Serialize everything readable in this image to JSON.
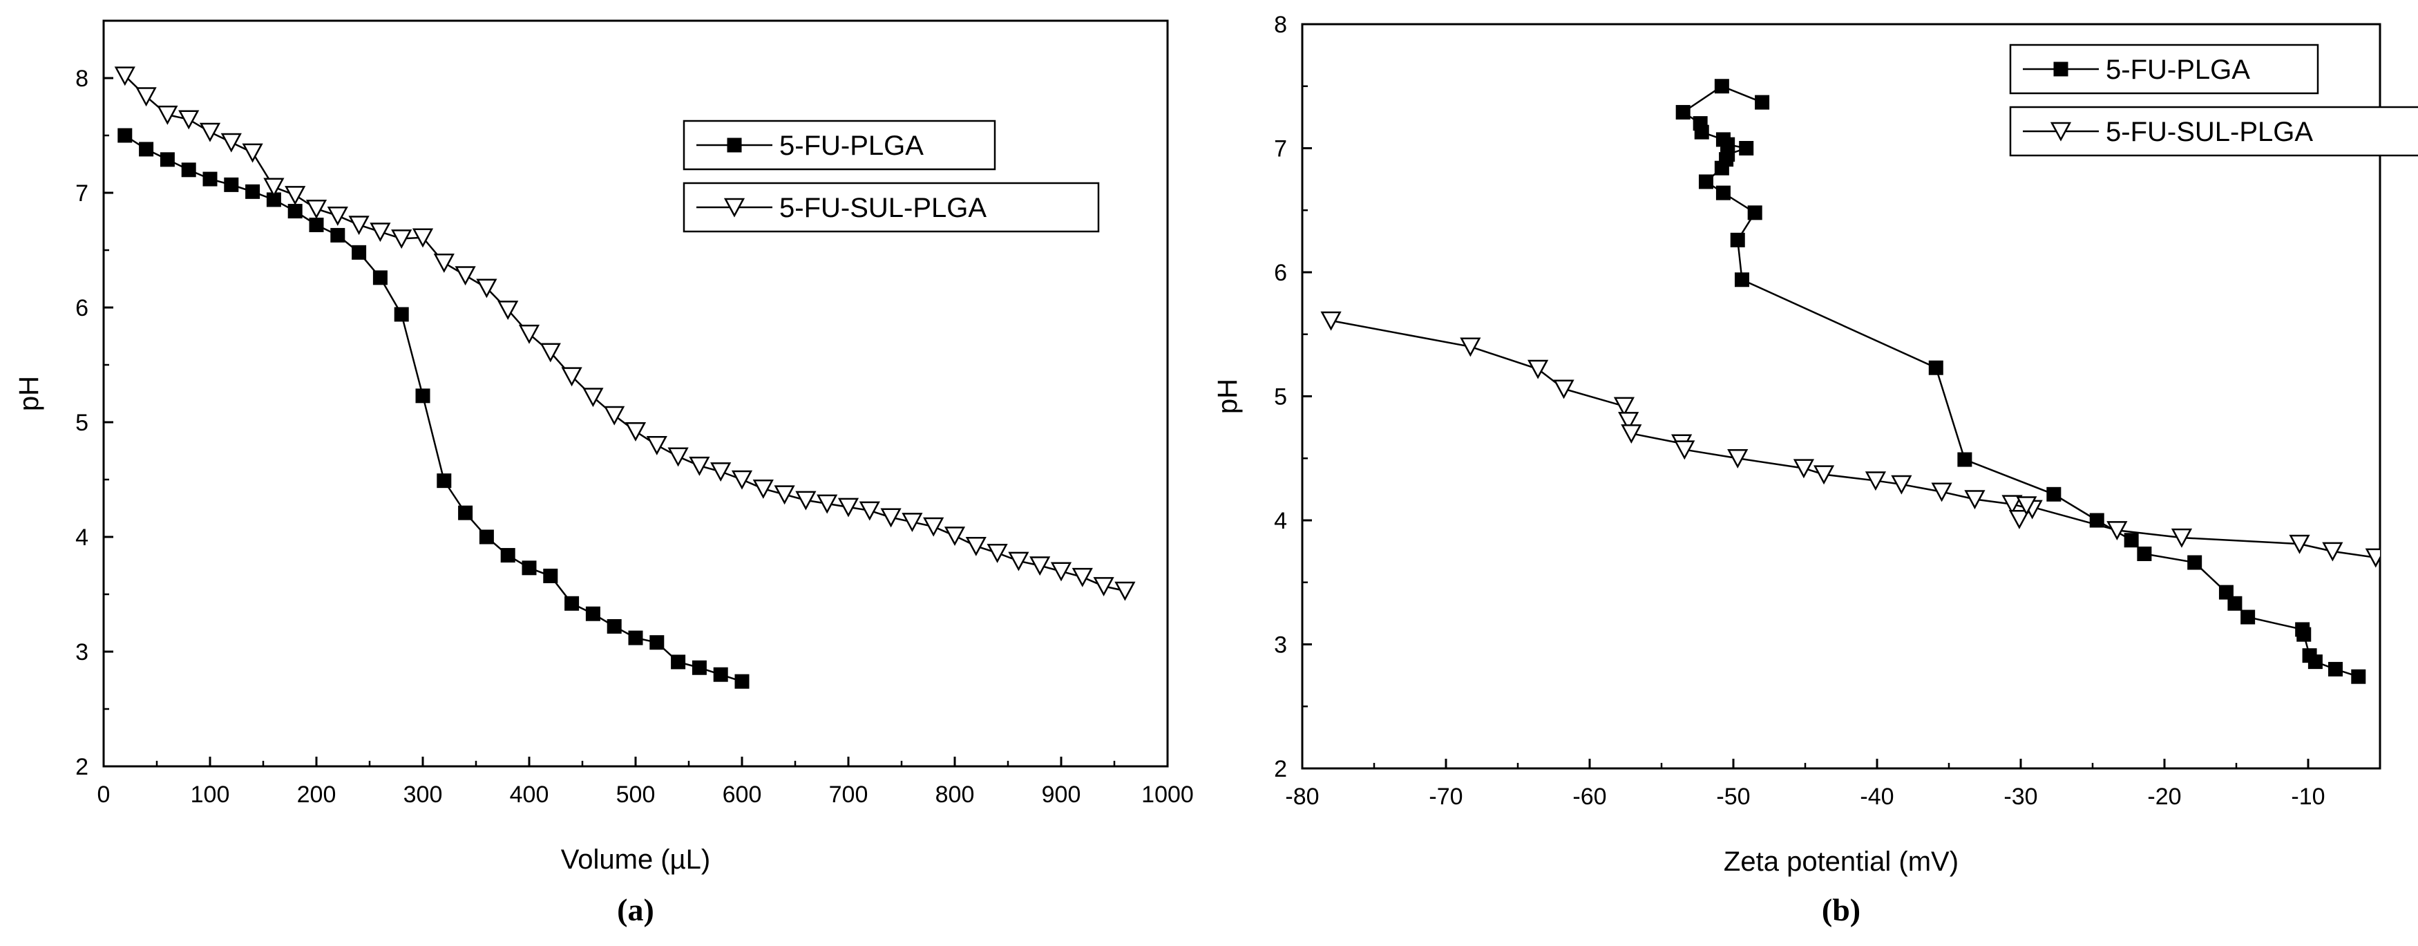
{
  "chart_data": [
    {
      "type": "line",
      "panel_label": "(a)",
      "xlabel": "Volume (µL)",
      "ylabel": "pH",
      "xlim": [
        0,
        1000
      ],
      "ylim": [
        2,
        8.5
      ],
      "xticks": [
        0,
        100,
        200,
        300,
        400,
        500,
        600,
        700,
        800,
        900,
        1000
      ],
      "yticks": [
        2,
        3,
        4,
        5,
        6,
        7,
        8
      ],
      "legend_position": "top-right",
      "series": [
        {
          "name": "5-FU-PLGA",
          "marker": "filled-square",
          "x": [
            20,
            40,
            60,
            80,
            100,
            120,
            140,
            160,
            180,
            200,
            220,
            240,
            260,
            280,
            300,
            320,
            340,
            360,
            380,
            400,
            420,
            440,
            460,
            480,
            500,
            520,
            540,
            560,
            580,
            600
          ],
          "y": [
            7.5,
            7.38,
            7.29,
            7.2,
            7.12,
            7.07,
            7.01,
            6.94,
            6.84,
            6.72,
            6.63,
            6.48,
            6.26,
            5.94,
            5.23,
            4.49,
            4.21,
            4.0,
            3.84,
            3.73,
            3.66,
            3.42,
            3.33,
            3.22,
            3.12,
            3.08,
            2.91,
            2.86,
            2.8,
            2.74
          ]
        },
        {
          "name": "5-FU-SUL-PLGA",
          "marker": "open-down-triangle",
          "x": [
            20,
            40,
            60,
            80,
            100,
            120,
            140,
            160,
            180,
            200,
            220,
            240,
            260,
            280,
            300,
            320,
            340,
            360,
            380,
            400,
            420,
            440,
            460,
            480,
            500,
            520,
            540,
            560,
            580,
            600,
            620,
            640,
            660,
            680,
            700,
            720,
            740,
            760,
            780,
            800,
            820,
            840,
            860,
            880,
            900,
            920,
            940,
            960
          ],
          "y": [
            8.02,
            7.84,
            7.68,
            7.64,
            7.53,
            7.44,
            7.35,
            7.05,
            6.98,
            6.86,
            6.8,
            6.72,
            6.66,
            6.6,
            6.61,
            6.39,
            6.28,
            6.17,
            5.98,
            5.77,
            5.61,
            5.4,
            5.22,
            5.06,
            4.92,
            4.8,
            4.7,
            4.62,
            4.57,
            4.5,
            4.42,
            4.37,
            4.32,
            4.29,
            4.26,
            4.23,
            4.17,
            4.13,
            4.09,
            4.01,
            3.92,
            3.86,
            3.79,
            3.75,
            3.7,
            3.65,
            3.57,
            3.53
          ]
        }
      ]
    },
    {
      "type": "line",
      "panel_label": "(b)",
      "xlabel": "Zeta potential (mV)",
      "ylabel": "pH",
      "xlim": [
        -80,
        -5
      ],
      "ylim": [
        2,
        8
      ],
      "xticks": [
        -80,
        -70,
        -60,
        -50,
        -40,
        -30,
        -20,
        -10
      ],
      "yticks": [
        2,
        3,
        4,
        5,
        6,
        7,
        8
      ],
      "legend_position": "top-right",
      "series": [
        {
          "name": "5-FU-PLGA",
          "marker": "filled-square",
          "x": [
            -48.0,
            -50.8,
            -53.5,
            -52.3,
            -52.2,
            -50.7,
            -50.4,
            -49.1,
            -50.4,
            -50.5,
            -50.8,
            -51.9,
            -50.7,
            -48.5,
            -49.7,
            -49.4,
            -35.9,
            -33.9,
            -27.7,
            -24.7,
            -22.3,
            -21.4,
            -17.9,
            -15.7,
            -15.1,
            -14.2,
            -10.4,
            -10.3,
            -9.9,
            -9.5,
            -8.1,
            -6.5
          ],
          "y": [
            7.37,
            7.5,
            7.29,
            7.2,
            7.13,
            7.07,
            7.03,
            7.0,
            6.95,
            6.91,
            6.84,
            6.73,
            6.64,
            6.48,
            6.26,
            5.94,
            5.23,
            4.49,
            4.21,
            4.0,
            3.84,
            3.73,
            3.66,
            3.42,
            3.33,
            3.22,
            3.12,
            3.08,
            2.91,
            2.86,
            2.8,
            2.74
          ]
        },
        {
          "name": "5-FU-SUL-PLGA",
          "marker": "open-down-triangle",
          "x": [
            -78.0,
            -68.3,
            -63.6,
            -61.8,
            -57.6,
            -57.3,
            -57.1,
            -53.6,
            -53.4,
            -49.7,
            -45.1,
            -43.7,
            -40.1,
            -38.3,
            -35.5,
            -33.2,
            -30.6,
            -29.2,
            -30.1,
            -29.6,
            -23.3,
            -18.8,
            -10.6,
            -8.3,
            -5.3
          ],
          "y": [
            5.61,
            5.4,
            5.22,
            5.06,
            4.92,
            4.8,
            4.7,
            4.62,
            4.57,
            4.5,
            4.42,
            4.37,
            4.32,
            4.29,
            4.23,
            4.17,
            4.13,
            4.09,
            4.01,
            4.12,
            3.92,
            3.86,
            3.81,
            3.75,
            3.7
          ]
        }
      ]
    }
  ]
}
